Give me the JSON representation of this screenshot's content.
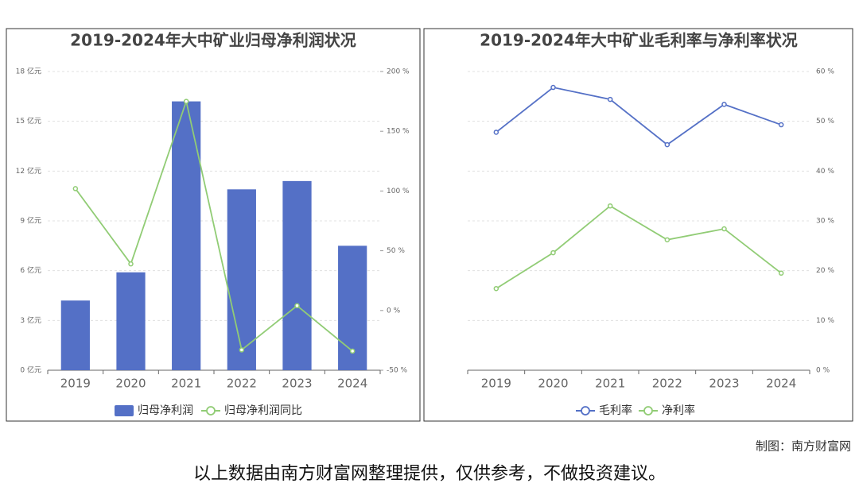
{
  "chart_data": [
    {
      "type": "bar",
      "title": "2019-2024年大中矿业归母净利润状况",
      "categories": [
        "2019",
        "2020",
        "2021",
        "2022",
        "2023",
        "2024"
      ],
      "series": [
        {
          "name": "归母净利润",
          "type": "bar",
          "color": "#5470c6",
          "values": [
            4.2,
            5.9,
            16.2,
            10.9,
            11.4,
            7.5
          ]
        },
        {
          "name": "归母净利润同比",
          "type": "line",
          "axis": "y2",
          "color": "#91cc75",
          "values": [
            102,
            39,
            175,
            -33,
            4,
            -34
          ]
        }
      ],
      "ylim": [
        0,
        18
      ],
      "yticks": [
        {
          "value": 0,
          "label": "0 亿元"
        },
        {
          "value": 3,
          "label": "3 亿元"
        },
        {
          "value": 6,
          "label": "6 亿元"
        },
        {
          "value": 9,
          "label": "9 亿元"
        },
        {
          "value": 12,
          "label": "12 亿元"
        },
        {
          "value": 15,
          "label": "15 亿元"
        },
        {
          "value": 18,
          "label": "18 亿元"
        }
      ],
      "y2lim": [
        -50,
        200
      ],
      "y2ticks": [
        {
          "value": -50,
          "label": "-50 %"
        },
        {
          "value": 0,
          "label": "0 %"
        },
        {
          "value": 50,
          "label": "50 %"
        },
        {
          "value": 100,
          "label": "100 %"
        },
        {
          "value": 150,
          "label": "150 %"
        },
        {
          "value": 200,
          "label": "200 %"
        }
      ],
      "grid": true,
      "legend": "bottom"
    },
    {
      "type": "line",
      "title": "2019-2024年大中矿业毛利率与净利率状况",
      "categories": [
        "2019",
        "2020",
        "2021",
        "2022",
        "2023",
        "2024"
      ],
      "series": [
        {
          "name": "毛利率",
          "color": "#5470c6",
          "values": [
            47.8,
            56.8,
            54.4,
            45.3,
            53.4,
            49.3
          ]
        },
        {
          "name": "净利率",
          "color": "#91cc75",
          "values": [
            16.4,
            23.6,
            33.0,
            26.2,
            28.4,
            19.5
          ]
        }
      ],
      "ylim": [
        0,
        60
      ],
      "yaxis_position": "right",
      "yticks": [
        {
          "value": 0,
          "label": "0 %"
        },
        {
          "value": 10,
          "label": "10 %"
        },
        {
          "value": 20,
          "label": "20 %"
        },
        {
          "value": 30,
          "label": "30 %"
        },
        {
          "value": 40,
          "label": "40 %"
        },
        {
          "value": 50,
          "label": "50 %"
        },
        {
          "value": 60,
          "label": "60 %"
        }
      ],
      "grid": true,
      "legend": "bottom"
    }
  ],
  "credit": "制图：南方财富网",
  "note": "以上数据由南方财富网整理提供，仅供参考，不做投资建议。"
}
